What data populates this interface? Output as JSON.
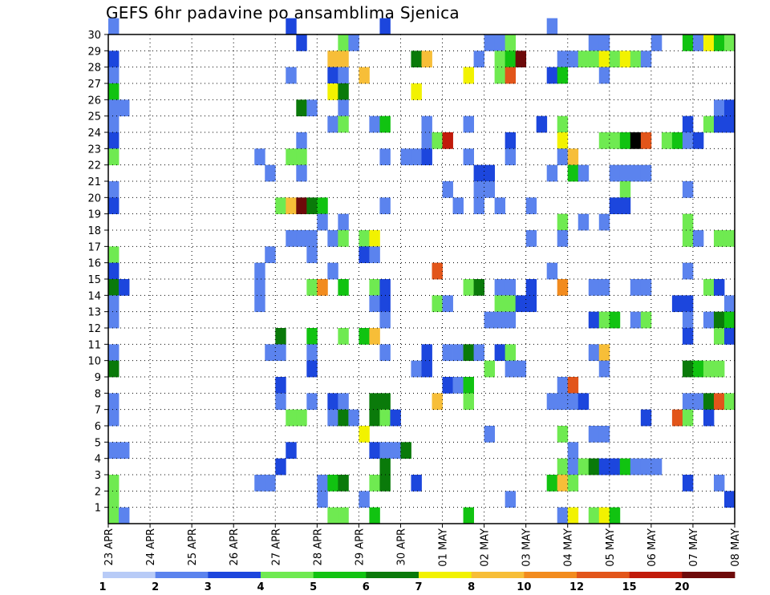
{
  "chart_data": {
    "type": "heatmap",
    "title": "GEFS 6hr padavine po ansamblima Sjenica",
    "xlabel": "",
    "ylabel": "",
    "x_tick_labels": [
      "23 APR",
      "24 APR",
      "25 APR",
      "26 APR",
      "27 APR",
      "28 APR",
      "29 APR",
      "30 APR",
      "01 MAY",
      "02 MAY",
      "03 MAY",
      "04 MAY",
      "05 MAY",
      "06 MAY",
      "07 MAY",
      "08 MAY"
    ],
    "xlim": [
      0,
      60
    ],
    "ylim": [
      0,
      30
    ],
    "y_tick_labels": [
      "1",
      "2",
      "3",
      "4",
      "5",
      "6",
      "7",
      "8",
      "9",
      "10",
      "11",
      "12",
      "13",
      "14",
      "15",
      "16",
      "17",
      "18",
      "19",
      "20",
      "21",
      "22",
      "23",
      "24",
      "25",
      "26",
      "27",
      "28",
      "29",
      "30"
    ],
    "grid": true,
    "colorbar": {
      "thresholds": [
        "1",
        "2",
        "3",
        "4",
        "5",
        "6",
        "7",
        "8",
        "10",
        "12",
        "15",
        "20"
      ],
      "colors": [
        "#b8cbf7",
        "#5b83ee",
        "#1c46dd",
        "#6fea51",
        "#11c311",
        "#0a7a0a",
        "#f2f200",
        "#f7be38",
        "#f28b1e",
        "#e2551a",
        "#c11a0a",
        "#6e0a0a"
      ]
    },
    "cells": [
      [
        0,
        30,
        1
      ],
      [
        17,
        30,
        2
      ],
      [
        26,
        30,
        2
      ],
      [
        42,
        30,
        1
      ],
      [
        18,
        29,
        2
      ],
      [
        22,
        29,
        3
      ],
      [
        23,
        29,
        1
      ],
      [
        36,
        29,
        1
      ],
      [
        37,
        29,
        1
      ],
      [
        38,
        29,
        3
      ],
      [
        46,
        29,
        1
      ],
      [
        47,
        29,
        1
      ],
      [
        52,
        29,
        1
      ],
      [
        55,
        29,
        4
      ],
      [
        56,
        29,
        1
      ],
      [
        57,
        29,
        6
      ],
      [
        58,
        29,
        4
      ],
      [
        59,
        29,
        3
      ],
      [
        0,
        28,
        2
      ],
      [
        21,
        28,
        7
      ],
      [
        22,
        28,
        7
      ],
      [
        29,
        28,
        5
      ],
      [
        30,
        28,
        7
      ],
      [
        35,
        28,
        1
      ],
      [
        37,
        28,
        3
      ],
      [
        38,
        28,
        4
      ],
      [
        39,
        28,
        11
      ],
      [
        43,
        28,
        1
      ],
      [
        44,
        28,
        1
      ],
      [
        45,
        28,
        3
      ],
      [
        46,
        28,
        3
      ],
      [
        47,
        28,
        6
      ],
      [
        48,
        28,
        3
      ],
      [
        49,
        28,
        6
      ],
      [
        50,
        28,
        3
      ],
      [
        51,
        28,
        1
      ],
      [
        0,
        27,
        1
      ],
      [
        17,
        27,
        1
      ],
      [
        21,
        27,
        2
      ],
      [
        22,
        27,
        1
      ],
      [
        24,
        27,
        7
      ],
      [
        34,
        27,
        6
      ],
      [
        37,
        27,
        3
      ],
      [
        38,
        27,
        9
      ],
      [
        42,
        27,
        2
      ],
      [
        43,
        27,
        4
      ],
      [
        47,
        27,
        1
      ],
      [
        0,
        26,
        4
      ],
      [
        21,
        26,
        6
      ],
      [
        22,
        26,
        5
      ],
      [
        29,
        26,
        6
      ],
      [
        0,
        25,
        1
      ],
      [
        1,
        25,
        1
      ],
      [
        18,
        25,
        5
      ],
      [
        19,
        25,
        1
      ],
      [
        22,
        25,
        1
      ],
      [
        58,
        25,
        1
      ],
      [
        59,
        25,
        2
      ],
      [
        0,
        24,
        1
      ],
      [
        21,
        24,
        1
      ],
      [
        22,
        24,
        3
      ],
      [
        25,
        24,
        1
      ],
      [
        26,
        24,
        4
      ],
      [
        30,
        24,
        1
      ],
      [
        34,
        24,
        1
      ],
      [
        41,
        24,
        2
      ],
      [
        43,
        24,
        3
      ],
      [
        55,
        24,
        2
      ],
      [
        57,
        24,
        3
      ],
      [
        58,
        24,
        2
      ],
      [
        59,
        24,
        2
      ],
      [
        0,
        23,
        2
      ],
      [
        18,
        23,
        1
      ],
      [
        30,
        23,
        1
      ],
      [
        31,
        23,
        3
      ],
      [
        32,
        23,
        10
      ],
      [
        38,
        23,
        2
      ],
      [
        43,
        23,
        6
      ],
      [
        47,
        23,
        3
      ],
      [
        48,
        23,
        3
      ],
      [
        49,
        23,
        4
      ],
      [
        50,
        23,
        12
      ],
      [
        51,
        23,
        9
      ],
      [
        53,
        23,
        3
      ],
      [
        54,
        23,
        4
      ],
      [
        55,
        23,
        1
      ],
      [
        56,
        23,
        2
      ],
      [
        0,
        22,
        3
      ],
      [
        14,
        22,
        1
      ],
      [
        17,
        22,
        3
      ],
      [
        18,
        22,
        3
      ],
      [
        26,
        22,
        1
      ],
      [
        28,
        22,
        1
      ],
      [
        29,
        22,
        1
      ],
      [
        30,
        22,
        2
      ],
      [
        34,
        22,
        1
      ],
      [
        38,
        22,
        1
      ],
      [
        43,
        22,
        1
      ],
      [
        44,
        22,
        7
      ],
      [
        15,
        21,
        1
      ],
      [
        18,
        21,
        1
      ],
      [
        35,
        21,
        2
      ],
      [
        36,
        21,
        2
      ],
      [
        42,
        21,
        1
      ],
      [
        44,
        21,
        4
      ],
      [
        45,
        21,
        1
      ],
      [
        48,
        21,
        1
      ],
      [
        49,
        21,
        1
      ],
      [
        50,
        21,
        1
      ],
      [
        51,
        21,
        1
      ],
      [
        0,
        20,
        1
      ],
      [
        32,
        20,
        1
      ],
      [
        35,
        20,
        1
      ],
      [
        36,
        20,
        1
      ],
      [
        49,
        20,
        3
      ],
      [
        55,
        20,
        1
      ],
      [
        0,
        19,
        2
      ],
      [
        16,
        19,
        3
      ],
      [
        17,
        19,
        7
      ],
      [
        18,
        19,
        11
      ],
      [
        19,
        19,
        5
      ],
      [
        20,
        19,
        4
      ],
      [
        26,
        19,
        1
      ],
      [
        33,
        19,
        1
      ],
      [
        35,
        19,
        1
      ],
      [
        37,
        19,
        1
      ],
      [
        40,
        19,
        1
      ],
      [
        48,
        19,
        2
      ],
      [
        49,
        19,
        2
      ],
      [
        20,
        18,
        1
      ],
      [
        22,
        18,
        1
      ],
      [
        43,
        18,
        3
      ],
      [
        45,
        18,
        1
      ],
      [
        47,
        18,
        1
      ],
      [
        55,
        18,
        3
      ],
      [
        17,
        17,
        1
      ],
      [
        18,
        17,
        1
      ],
      [
        19,
        17,
        1
      ],
      [
        21,
        17,
        1
      ],
      [
        22,
        17,
        3
      ],
      [
        24,
        17,
        3
      ],
      [
        25,
        17,
        6
      ],
      [
        40,
        17,
        1
      ],
      [
        43,
        17,
        1
      ],
      [
        55,
        17,
        3
      ],
      [
        56,
        17,
        1
      ],
      [
        58,
        17,
        3
      ],
      [
        59,
        17,
        3
      ],
      [
        0,
        16,
        3
      ],
      [
        15,
        16,
        1
      ],
      [
        19,
        16,
        1
      ],
      [
        24,
        16,
        2
      ],
      [
        25,
        16,
        1
      ],
      [
        0,
        15,
        2
      ],
      [
        14,
        15,
        1
      ],
      [
        21,
        15,
        1
      ],
      [
        31,
        15,
        9
      ],
      [
        42,
        15,
        1
      ],
      [
        55,
        15,
        1
      ],
      [
        0,
        14,
        5
      ],
      [
        1,
        14,
        2
      ],
      [
        14,
        14,
        1
      ],
      [
        19,
        14,
        3
      ],
      [
        20,
        14,
        8
      ],
      [
        22,
        14,
        4
      ],
      [
        25,
        14,
        3
      ],
      [
        26,
        14,
        2
      ],
      [
        34,
        14,
        3
      ],
      [
        35,
        14,
        5
      ],
      [
        37,
        14,
        1
      ],
      [
        38,
        14,
        1
      ],
      [
        40,
        14,
        2
      ],
      [
        43,
        14,
        8
      ],
      [
        46,
        14,
        1
      ],
      [
        47,
        14,
        1
      ],
      [
        50,
        14,
        1
      ],
      [
        51,
        14,
        1
      ],
      [
        57,
        14,
        3
      ],
      [
        58,
        14,
        2
      ],
      [
        0,
        13,
        1
      ],
      [
        14,
        13,
        1
      ],
      [
        25,
        13,
        1
      ],
      [
        26,
        13,
        2
      ],
      [
        31,
        13,
        3
      ],
      [
        32,
        13,
        1
      ],
      [
        37,
        13,
        3
      ],
      [
        38,
        13,
        3
      ],
      [
        39,
        13,
        2
      ],
      [
        40,
        13,
        2
      ],
      [
        54,
        13,
        2
      ],
      [
        55,
        13,
        2
      ],
      [
        59,
        13,
        1
      ],
      [
        0,
        12,
        1
      ],
      [
        26,
        12,
        1
      ],
      [
        36,
        12,
        1
      ],
      [
        37,
        12,
        1
      ],
      [
        38,
        12,
        1
      ],
      [
        46,
        12,
        2
      ],
      [
        47,
        12,
        3
      ],
      [
        48,
        12,
        4
      ],
      [
        50,
        12,
        1
      ],
      [
        51,
        12,
        3
      ],
      [
        55,
        12,
        1
      ],
      [
        57,
        12,
        1
      ],
      [
        58,
        12,
        5
      ],
      [
        59,
        12,
        4
      ],
      [
        16,
        11,
        5
      ],
      [
        19,
        11,
        4
      ],
      [
        22,
        11,
        3
      ],
      [
        24,
        11,
        4
      ],
      [
        25,
        11,
        7
      ],
      [
        55,
        11,
        2
      ],
      [
        58,
        11,
        3
      ],
      [
        59,
        11,
        2
      ],
      [
        0,
        10,
        1
      ],
      [
        15,
        10,
        1
      ],
      [
        16,
        10,
        1
      ],
      [
        19,
        10,
        1
      ],
      [
        26,
        10,
        1
      ],
      [
        30,
        10,
        2
      ],
      [
        32,
        10,
        1
      ],
      [
        33,
        10,
        1
      ],
      [
        34,
        10,
        5
      ],
      [
        35,
        10,
        1
      ],
      [
        37,
        10,
        2
      ],
      [
        38,
        10,
        3
      ],
      [
        46,
        10,
        1
      ],
      [
        47,
        10,
        7
      ],
      [
        0,
        9,
        5
      ],
      [
        19,
        9,
        2
      ],
      [
        29,
        9,
        1
      ],
      [
        30,
        9,
        2
      ],
      [
        36,
        9,
        3
      ],
      [
        38,
        9,
        1
      ],
      [
        39,
        9,
        1
      ],
      [
        47,
        9,
        1
      ],
      [
        55,
        9,
        5
      ],
      [
        56,
        9,
        4
      ],
      [
        57,
        9,
        3
      ],
      [
        58,
        9,
        3
      ],
      [
        16,
        8,
        2
      ],
      [
        32,
        8,
        2
      ],
      [
        33,
        8,
        1
      ],
      [
        34,
        8,
        4
      ],
      [
        43,
        8,
        1
      ],
      [
        44,
        8,
        9
      ],
      [
        0,
        7,
        1
      ],
      [
        16,
        7,
        1
      ],
      [
        19,
        7,
        1
      ],
      [
        21,
        7,
        2
      ],
      [
        22,
        7,
        1
      ],
      [
        25,
        7,
        5
      ],
      [
        26,
        7,
        5
      ],
      [
        31,
        7,
        7
      ],
      [
        34,
        7,
        3
      ],
      [
        42,
        7,
        1
      ],
      [
        43,
        7,
        1
      ],
      [
        44,
        7,
        1
      ],
      [
        45,
        7,
        2
      ],
      [
        55,
        7,
        1
      ],
      [
        56,
        7,
        1
      ],
      [
        57,
        7,
        5
      ],
      [
        58,
        7,
        9
      ],
      [
        59,
        7,
        3
      ],
      [
        0,
        6,
        1
      ],
      [
        17,
        6,
        3
      ],
      [
        18,
        6,
        3
      ],
      [
        21,
        6,
        1
      ],
      [
        22,
        6,
        5
      ],
      [
        23,
        6,
        1
      ],
      [
        25,
        6,
        5
      ],
      [
        26,
        6,
        3
      ],
      [
        27,
        6,
        2
      ],
      [
        51,
        6,
        2
      ],
      [
        54,
        6,
        9
      ],
      [
        55,
        6,
        3
      ],
      [
        57,
        6,
        2
      ],
      [
        24,
        5,
        6
      ],
      [
        36,
        5,
        1
      ],
      [
        43,
        5,
        3
      ],
      [
        46,
        5,
        1
      ],
      [
        47,
        5,
        1
      ],
      [
        0,
        4,
        1
      ],
      [
        1,
        4,
        1
      ],
      [
        17,
        4,
        2
      ],
      [
        25,
        4,
        2
      ],
      [
        26,
        4,
        1
      ],
      [
        27,
        4,
        1
      ],
      [
        28,
        4,
        5
      ],
      [
        44,
        4,
        1
      ],
      [
        16,
        3,
        2
      ],
      [
        26,
        3,
        5
      ],
      [
        43,
        3,
        3
      ],
      [
        44,
        3,
        1
      ],
      [
        45,
        3,
        3
      ],
      [
        46,
        3,
        5
      ],
      [
        47,
        3,
        2
      ],
      [
        48,
        3,
        2
      ],
      [
        49,
        3,
        4
      ],
      [
        50,
        3,
        1
      ],
      [
        51,
        3,
        1
      ],
      [
        52,
        3,
        1
      ],
      [
        0,
        2,
        3
      ],
      [
        14,
        2,
        1
      ],
      [
        15,
        2,
        1
      ],
      [
        20,
        2,
        1
      ],
      [
        21,
        2,
        4
      ],
      [
        22,
        2,
        5
      ],
      [
        25,
        2,
        3
      ],
      [
        26,
        2,
        5
      ],
      [
        29,
        2,
        2
      ],
      [
        42,
        2,
        4
      ],
      [
        43,
        2,
        7
      ],
      [
        44,
        2,
        3
      ],
      [
        55,
        2,
        2
      ],
      [
        58,
        2,
        1
      ],
      [
        0,
        1,
        3
      ],
      [
        20,
        1,
        1
      ],
      [
        24,
        1,
        1
      ],
      [
        38,
        1,
        1
      ],
      [
        59,
        1,
        2
      ],
      [
        0,
        0,
        3
      ],
      [
        1,
        0,
        1
      ],
      [
        21,
        0,
        3
      ],
      [
        22,
        0,
        3
      ],
      [
        25,
        0,
        4
      ],
      [
        34,
        0,
        4
      ],
      [
        43,
        0,
        1
      ],
      [
        44,
        0,
        6
      ],
      [
        46,
        0,
        3
      ],
      [
        47,
        0,
        6
      ],
      [
        48,
        0,
        4
      ]
    ]
  }
}
